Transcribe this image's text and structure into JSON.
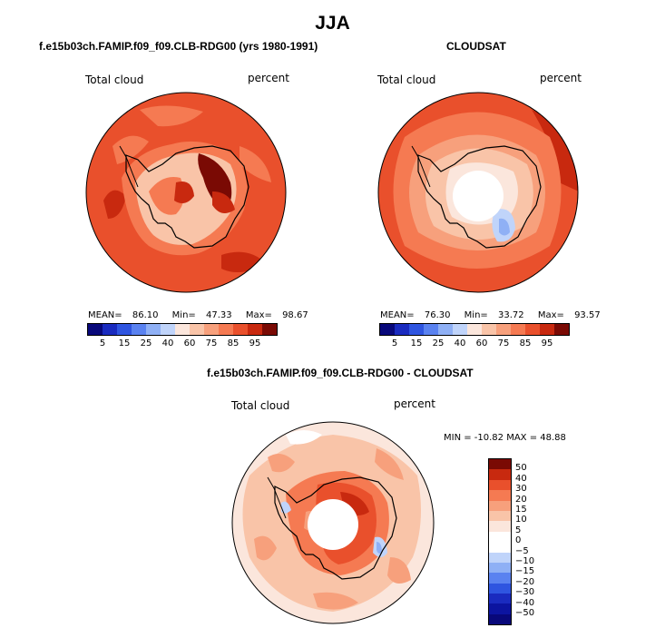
{
  "title": "JJA",
  "panels": [
    {
      "title": "f.e15b03ch.FAMIP.f09_f09.CLB-RDG00 (yrs 1980-1991)",
      "variable": "Total cloud",
      "units": "percent",
      "stats": {
        "mean": "86.10",
        "min": "47.33",
        "max": "98.67"
      }
    },
    {
      "title": "CLOUDSAT",
      "variable": "Total cloud",
      "units": "percent",
      "stats": {
        "mean": "76.30",
        "min": "33.72",
        "max": "93.57"
      }
    },
    {
      "title": "f.e15b03ch.FAMIP.f09_f09.CLB-RDG00 - CLOUDSAT",
      "variable": "Total cloud",
      "units": "percent",
      "stats_text": "MIN = -10.82  MAX =  48.88"
    }
  ],
  "stat_labels": {
    "mean": "MEAN=",
    "min": "Min=",
    "max": "Max="
  },
  "colorbar_abs": {
    "colors": [
      "#08087a",
      "#1a2bbf",
      "#2f55e0",
      "#5a82f0",
      "#8fb0f5",
      "#c0d4fa",
      "#fbe6dc",
      "#f9c4a8",
      "#f7a07c",
      "#f57a52",
      "#e9502c",
      "#c8290f",
      "#7a0a04"
    ],
    "tick_labels": [
      "5",
      "15",
      "25",
      "40",
      "60",
      "75",
      "85",
      "95"
    ]
  },
  "colorbar_diff": {
    "colors": [
      "#7a0a04",
      "#c8290f",
      "#e9502c",
      "#f57a52",
      "#f7a07c",
      "#f9c4a8",
      "#fbe6dc",
      "#ffffff",
      "#ffffff",
      "#c0d4fa",
      "#8fb0f5",
      "#5a82f0",
      "#2f55e0",
      "#1a2bbf",
      "#0c14a0",
      "#08087a"
    ],
    "tick_labels": [
      "50",
      "40",
      "30",
      "20",
      "15",
      "10",
      "5",
      "0",
      "−5",
      "−10",
      "−15",
      "−20",
      "−30",
      "−40",
      "−50"
    ]
  }
}
